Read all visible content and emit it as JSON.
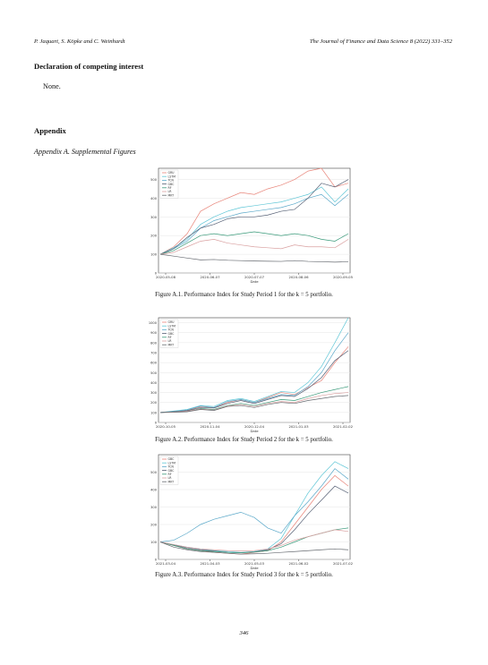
{
  "header": {
    "authors": "P. Jaquart, S. Köpke and C. Weinhardt",
    "journal": "The Journal of Finance and Data Science 8 (2022) 331–352"
  },
  "competing": {
    "heading": "Declaration of competing interest",
    "text": "None."
  },
  "appendix": {
    "heading": "Appendix",
    "subheading": "Appendix A. Supplemental Figures"
  },
  "page_number": "346",
  "colors": [
    "#e8857a",
    "#5ec6d6",
    "#5aa8c9",
    "#555f74",
    "#3a9a7a",
    "#d9a0a0",
    "#666a70"
  ],
  "chart_data": [
    {
      "type": "line",
      "caption": "Figure A.1. Performance Index for Study Period 1 for the k = 5 portfolio.",
      "xlabel": "Date",
      "xticks": [
        "2020-05-08",
        "2020-06-07",
        "2020-07-07",
        "2020-08-06",
        "2020-09-05"
      ],
      "yticks": [
        "0",
        "100",
        "200",
        "300",
        "400",
        "500"
      ],
      "ylim": [
        0,
        560
      ],
      "legend": [
        "GRU",
        "LSTM",
        "TCN",
        "GBC",
        "RF",
        "LR",
        "MKT"
      ],
      "legend_position": "upper-left",
      "series": [
        {
          "name": "GRU",
          "values": [
            100,
            140,
            210,
            330,
            370,
            400,
            430,
            420,
            450,
            470,
            500,
            545,
            560,
            460,
            480
          ]
        },
        {
          "name": "LSTM",
          "values": [
            100,
            135,
            180,
            260,
            300,
            330,
            350,
            360,
            370,
            380,
            400,
            420,
            460,
            380,
            450
          ]
        },
        {
          "name": "TCN",
          "values": [
            100,
            130,
            170,
            240,
            280,
            300,
            320,
            330,
            340,
            350,
            370,
            400,
            420,
            360,
            420
          ]
        },
        {
          "name": "GBC",
          "values": [
            100,
            130,
            190,
            240,
            260,
            290,
            300,
            300,
            310,
            330,
            340,
            400,
            480,
            460,
            500
          ]
        },
        {
          "name": "RF",
          "values": [
            100,
            120,
            160,
            200,
            210,
            200,
            210,
            220,
            210,
            200,
            210,
            200,
            180,
            170,
            210
          ]
        },
        {
          "name": "LR",
          "values": [
            100,
            110,
            140,
            170,
            180,
            160,
            150,
            140,
            135,
            130,
            150,
            140,
            140,
            135,
            180
          ]
        },
        {
          "name": "MKT",
          "values": [
            100,
            90,
            80,
            70,
            72,
            68,
            66,
            64,
            63,
            62,
            66,
            62,
            60,
            58,
            60
          ]
        }
      ]
    },
    {
      "type": "line",
      "caption": "Figure A.2. Performance Index for Study Period 2 for the k = 5 portfolio.",
      "xlabel": "Date",
      "xticks": [
        "2020-10-05",
        "2020-11-04",
        "2020-12-04",
        "2021-01-03",
        "2021-02-02"
      ],
      "yticks": [
        "0",
        "100",
        "200",
        "300",
        "400",
        "500",
        "600",
        "700",
        "800",
        "900",
        "1000"
      ],
      "ylim": [
        0,
        1050
      ],
      "legend": [
        "GRU",
        "LSTM",
        "TCN",
        "GBC",
        "RF",
        "LR",
        "MKT"
      ],
      "legend_position": "upper-left",
      "series": [
        {
          "name": "GRU",
          "values": [
            100,
            110,
            120,
            160,
            150,
            200,
            230,
            200,
            250,
            300,
            280,
            350,
            420,
            600,
            760
          ]
        },
        {
          "name": "LSTM",
          "values": [
            100,
            115,
            130,
            170,
            160,
            220,
            240,
            210,
            260,
            310,
            300,
            400,
            560,
            800,
            1050
          ]
        },
        {
          "name": "TCN",
          "values": [
            100,
            110,
            125,
            165,
            150,
            210,
            230,
            200,
            240,
            280,
            270,
            360,
            500,
            720,
            900
          ]
        },
        {
          "name": "GBC",
          "values": [
            100,
            108,
            118,
            150,
            145,
            190,
            220,
            190,
            230,
            270,
            260,
            340,
            450,
            620,
            720
          ]
        },
        {
          "name": "RF",
          "values": [
            100,
            105,
            110,
            140,
            130,
            170,
            190,
            170,
            200,
            230,
            220,
            260,
            300,
            330,
            360
          ]
        },
        {
          "name": "LR",
          "values": [
            100,
            104,
            112,
            135,
            125,
            165,
            180,
            160,
            190,
            210,
            200,
            240,
            270,
            290,
            300
          ]
        },
        {
          "name": "MKT",
          "values": [
            100,
            102,
            108,
            130,
            120,
            160,
            170,
            150,
            180,
            200,
            190,
            220,
            240,
            260,
            270
          ]
        }
      ]
    },
    {
      "type": "line",
      "caption": "Figure A.3. Performance Index for Study Period 3 for the k = 5 portfolio.",
      "xlabel": "Date",
      "xticks": [
        "2021-03-04",
        "2021-04-03",
        "2021-05-03",
        "2021-06-02",
        "2021-07-02"
      ],
      "yticks": [
        "0",
        "100",
        "200",
        "300",
        "400",
        "500"
      ],
      "ylim": [
        0,
        600
      ],
      "legend": [
        "GBC",
        "LSTM",
        "TCN",
        "GBC",
        "RF",
        "LR",
        "MKT"
      ],
      "legend_position": "upper-left",
      "series": [
        {
          "name": "GBC",
          "values": [
            100,
            80,
            60,
            50,
            40,
            35,
            30,
            40,
            50,
            100,
            200,
            300,
            400,
            480,
            420
          ]
        },
        {
          "name": "LSTM",
          "values": [
            100,
            85,
            70,
            60,
            50,
            45,
            40,
            45,
            60,
            120,
            250,
            380,
            480,
            560,
            520
          ]
        },
        {
          "name": "TCN",
          "values": [
            100,
            110,
            150,
            200,
            230,
            250,
            270,
            240,
            180,
            150,
            250,
            330,
            420,
            520,
            460
          ]
        },
        {
          "name": "GBC",
          "values": [
            100,
            82,
            65,
            55,
            48,
            40,
            38,
            42,
            55,
            90,
            170,
            260,
            340,
            420,
            380
          ]
        },
        {
          "name": "RF",
          "values": [
            100,
            80,
            60,
            50,
            45,
            40,
            38,
            42,
            50,
            70,
            100,
            130,
            150,
            170,
            180
          ]
        },
        {
          "name": "LR",
          "values": [
            100,
            85,
            70,
            60,
            55,
            50,
            48,
            50,
            60,
            80,
            110,
            130,
            150,
            170,
            160
          ]
        },
        {
          "name": "MKT",
          "values": [
            100,
            70,
            55,
            45,
            40,
            35,
            30,
            32,
            35,
            40,
            45,
            50,
            55,
            60,
            55
          ]
        }
      ]
    }
  ]
}
